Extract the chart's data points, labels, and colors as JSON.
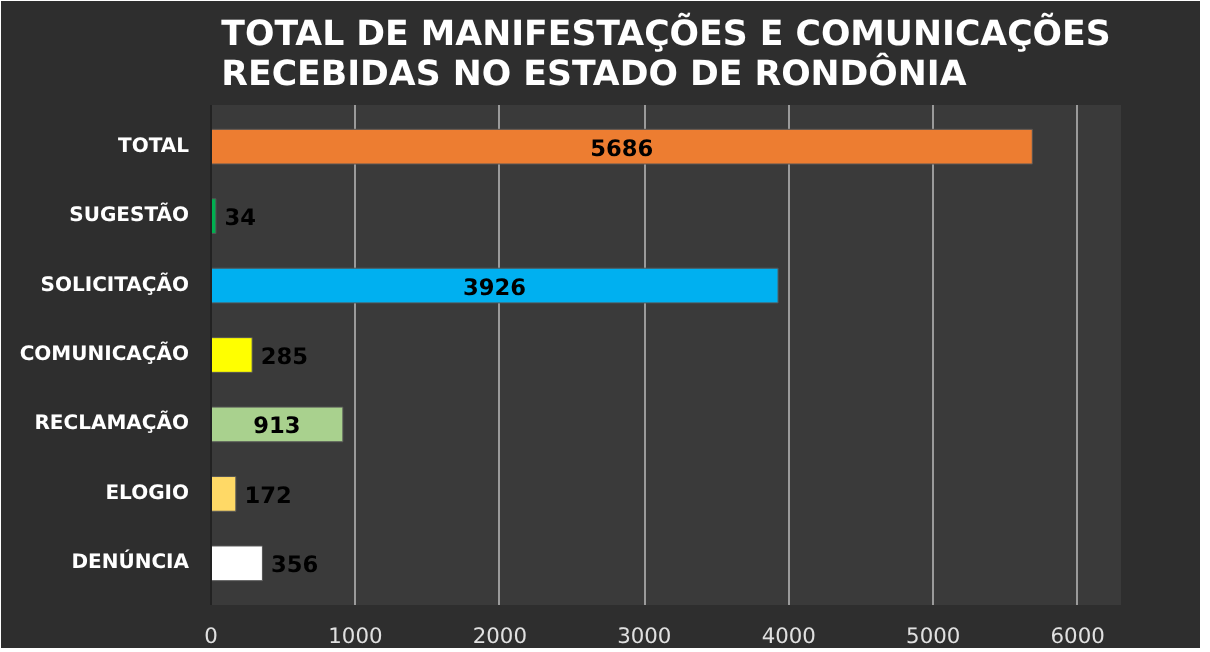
{
  "chart_data": {
    "type": "bar",
    "orientation": "horizontal",
    "title": "TOTAL DE MANIFESTAÇÕES E COMUNICAÇÕES\nRECEBIDAS NO ESTADO DE RONDÔNIA",
    "categories": [
      "TOTAL",
      "SUGESTÃO",
      "SOLICITAÇÃO",
      "COMUNICAÇÃO",
      "RECLAMAÇÃO",
      "ELOGIO",
      "DENÚNCIA"
    ],
    "values": [
      5686,
      34,
      3926,
      285,
      913,
      172,
      356
    ],
    "colors": [
      "#ed7d31",
      "#00b050",
      "#00b0f0",
      "#ffff00",
      "#a9d18e",
      "#ffd966",
      "#ffffff"
    ],
    "xlim": [
      0,
      6000
    ],
    "xticks": [
      0,
      1000,
      2000,
      3000,
      4000,
      5000,
      6000
    ],
    "grid": "x",
    "data_labels": true
  }
}
